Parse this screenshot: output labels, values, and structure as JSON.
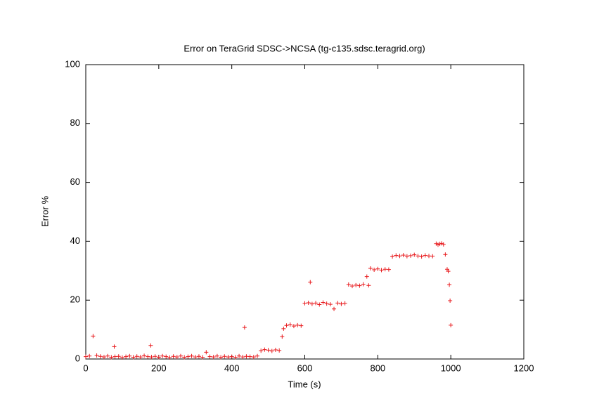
{
  "chart_data": {
    "type": "scatter",
    "title": "Error on TeraGrid SDSC->NCSA (tg-c135.sdsc.teragrid.org)",
    "xlabel": "Time (s)",
    "ylabel": "Error %",
    "color": "#e8191c",
    "xlim": [
      0,
      1200
    ],
    "xticks": [
      0,
      200,
      400,
      600,
      800,
      1000,
      1200
    ],
    "ylim": [
      0,
      100
    ],
    "yticks": [
      0,
      20,
      40,
      60,
      80,
      100
    ],
    "x": [
      0,
      10,
      20,
      30,
      40,
      50,
      60,
      70,
      78,
      80,
      90,
      100,
      110,
      120,
      130,
      140,
      150,
      160,
      170,
      178,
      180,
      190,
      200,
      210,
      220,
      230,
      240,
      250,
      260,
      270,
      280,
      290,
      300,
      310,
      320,
      330,
      340,
      350,
      360,
      370,
      380,
      390,
      400,
      410,
      420,
      430,
      435,
      440,
      450,
      460,
      470,
      480,
      490,
      500,
      510,
      520,
      530,
      538,
      542,
      550,
      560,
      570,
      580,
      590,
      600,
      610,
      615,
      620,
      630,
      640,
      650,
      660,
      670,
      680,
      690,
      700,
      710,
      720,
      730,
      740,
      750,
      760,
      770,
      775,
      780,
      790,
      800,
      810,
      820,
      830,
      840,
      850,
      860,
      870,
      880,
      890,
      900,
      910,
      920,
      930,
      940,
      950,
      960,
      965,
      970,
      975,
      980,
      985,
      990,
      993,
      996,
      998,
      1000
    ],
    "values": [
      0.8,
      1.0,
      7.8,
      1.2,
      0.9,
      0.7,
      1.0,
      0.6,
      4.2,
      0.8,
      0.9,
      0.5,
      0.8,
      1.0,
      0.6,
      0.9,
      0.7,
      1.1,
      0.8,
      4.6,
      0.7,
      0.9,
      0.6,
      1.0,
      0.8,
      0.5,
      0.9,
      0.7,
      1.0,
      0.6,
      0.8,
      1.0,
      0.7,
      0.9,
      0.6,
      2.3,
      0.8,
      0.7,
      1.0,
      0.6,
      0.9,
      0.7,
      0.8,
      0.6,
      1.0,
      0.7,
      10.7,
      0.9,
      0.8,
      0.7,
      1.0,
      2.8,
      3.2,
      3.0,
      2.7,
      3.1,
      2.9,
      7.6,
      10.3,
      11.4,
      11.7,
      11.2,
      11.5,
      11.3,
      18.9,
      19.1,
      26.1,
      18.7,
      19.0,
      18.5,
      19.2,
      18.8,
      18.6,
      17.0,
      19.0,
      18.7,
      18.9,
      25.3,
      24.8,
      25.1,
      24.9,
      25.4,
      28.0,
      25.0,
      30.8,
      30.3,
      30.6,
      30.2,
      30.5,
      30.4,
      34.8,
      35.2,
      35.0,
      35.3,
      34.9,
      35.1,
      35.4,
      35.0,
      34.8,
      35.2,
      35.0,
      34.9,
      39.2,
      38.8,
      39.1,
      39.3,
      38.9,
      35.5,
      30.5,
      29.8,
      25.2,
      19.8,
      11.5
    ]
  }
}
